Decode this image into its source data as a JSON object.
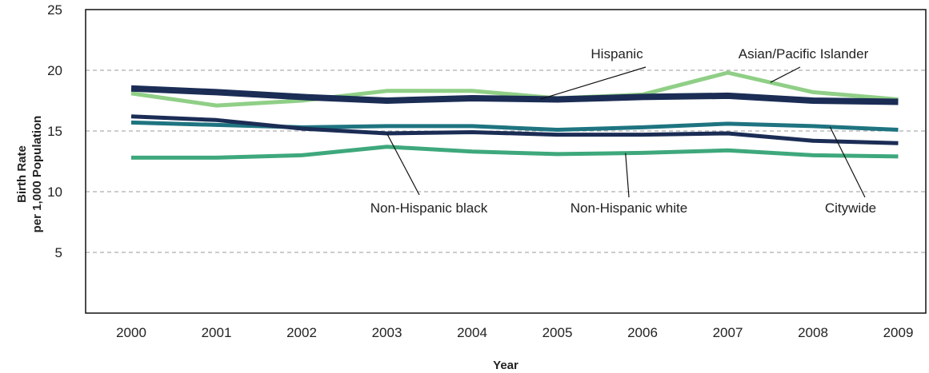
{
  "chart_data": {
    "type": "line",
    "title": "",
    "xlabel": "Year",
    "ylabel_line1": "Birth Rate",
    "ylabel_line2": "per 1,000 Population",
    "ylim": [
      0,
      25
    ],
    "yticks": [
      5,
      10,
      15,
      20,
      25
    ],
    "grid": "horizontal dashed",
    "x": [
      "2000",
      "2001",
      "2002",
      "2003",
      "2004",
      "2005",
      "2006",
      "2007",
      "2008",
      "2009"
    ],
    "series": [
      {
        "name": "Hispanic",
        "color": "#1b2d55",
        "values": [
          18.5,
          18.2,
          17.8,
          17.5,
          17.7,
          17.6,
          17.8,
          17.9,
          17.5,
          17.4
        ]
      },
      {
        "name": "Asian/Pacific Islander",
        "color": "#8fcf86",
        "values": [
          18.1,
          17.1,
          17.5,
          18.3,
          18.3,
          17.7,
          18.0,
          19.8,
          18.2,
          17.6
        ]
      },
      {
        "name": "Citywide",
        "color": "#1e7480",
        "values": [
          15.7,
          15.5,
          15.3,
          15.4,
          15.4,
          15.1,
          15.3,
          15.6,
          15.4,
          15.1
        ]
      },
      {
        "name": "Non-Hispanic black",
        "color": "#1b2d55",
        "values": [
          16.2,
          15.9,
          15.2,
          14.8,
          14.9,
          14.7,
          14.7,
          14.8,
          14.2,
          14.0
        ]
      },
      {
        "name": "Non-Hispanic white",
        "color": "#3ea87c",
        "values": [
          12.8,
          12.8,
          13.0,
          13.7,
          13.3,
          13.1,
          13.2,
          13.4,
          13.0,
          12.9
        ]
      }
    ]
  }
}
